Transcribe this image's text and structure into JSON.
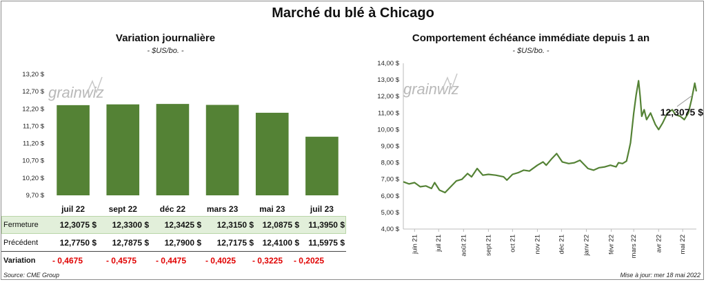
{
  "title": "Marché du blé à Chicago",
  "left_chart": {
    "title": "Variation journalière",
    "unit": "- $US/bo. -"
  },
  "right_chart": {
    "title": "Comportement échéance immédiate depuis 1 an",
    "unit": "- $US/bo. -",
    "last_label": "12,3075 $"
  },
  "watermark": "grainwiz",
  "table": {
    "rows": [
      {
        "label": "Fermeture",
        "values": [
          "12,3075  $",
          "12,3300  $",
          "12,3425  $",
          "12,3150  $",
          "12,0875  $",
          "11,3950  $"
        ]
      },
      {
        "label": "Précédent",
        "values": [
          "12,7750  $",
          "12,7875  $",
          "12,7900  $",
          "12,7175  $",
          "12,4100  $",
          "11,5975  $"
        ]
      },
      {
        "label": "Variation",
        "values": [
          "- 0,4675",
          "- 0,4575",
          "- 0,4475",
          "- 0,4025",
          "- 0,3225",
          "- 0,2025"
        ]
      }
    ]
  },
  "colors": {
    "bar": "#548235",
    "line": "#548235",
    "fermeture_bg": "#e2efda",
    "negative": "#e00000"
  },
  "footer": {
    "source": "Source: CME Group",
    "updated": "Mise à jour: mer 18 mai 2022"
  },
  "chart_data": [
    {
      "type": "bar",
      "title": "Variation journalière",
      "categories": [
        "juil 22",
        "sept 22",
        "déc 22",
        "mars 23",
        "mai 23",
        "juil 23"
      ],
      "values": [
        12.3075,
        12.33,
        12.3425,
        12.315,
        12.0875,
        11.395
      ],
      "ylim": [
        9.7,
        13.2
      ],
      "yticks": [
        9.7,
        10.2,
        10.7,
        11.2,
        11.7,
        12.2,
        12.7,
        13.2
      ],
      "ytick_labels": [
        "9,70 $",
        "10,20 $",
        "10,70 $",
        "11,20 $",
        "11,70 $",
        "12,20 $",
        "12,70 $",
        "13,20 $"
      ],
      "grid": false
    },
    {
      "type": "line",
      "title": "Comportement échéance immédiate depuis 1 an",
      "ylim": [
        4.0,
        14.0
      ],
      "yticks": [
        4,
        5,
        6,
        7,
        8,
        9,
        10,
        11,
        12,
        13,
        14
      ],
      "ytick_labels": [
        "4,00 $",
        "5,00 $",
        "6,00 $",
        "7,00 $",
        "8,00 $",
        "9,00 $",
        "10,00 $",
        "11,00 $",
        "12,00 $",
        "13,00 $",
        "14,00 $"
      ],
      "xlabels": [
        "juin 21",
        "juil 21",
        "août 21",
        "sept 21",
        "oct 21",
        "nov 21",
        "déc 21",
        "janv 22",
        "févr 22",
        "mars 22",
        "avr 22",
        "mai 22"
      ],
      "x_range": [
        "2021-05-18",
        "2022-05-18"
      ],
      "grid": false,
      "series": [
        {
          "points": [
            [
              "2021-05-18",
              6.85
            ],
            [
              "2021-05-25",
              6.72
            ],
            [
              "2021-06-01",
              6.8
            ],
            [
              "2021-06-08",
              6.55
            ],
            [
              "2021-06-15",
              6.6
            ],
            [
              "2021-06-22",
              6.45
            ],
            [
              "2021-06-26",
              6.8
            ],
            [
              "2021-07-02",
              6.35
            ],
            [
              "2021-07-09",
              6.2
            ],
            [
              "2021-07-16",
              6.55
            ],
            [
              "2021-07-23",
              6.9
            ],
            [
              "2021-07-30",
              7.0
            ],
            [
              "2021-08-06",
              7.35
            ],
            [
              "2021-08-11",
              7.15
            ],
            [
              "2021-08-18",
              7.65
            ],
            [
              "2021-08-25",
              7.25
            ],
            [
              "2021-09-01",
              7.3
            ],
            [
              "2021-09-10",
              7.25
            ],
            [
              "2021-09-20",
              7.15
            ],
            [
              "2021-09-24",
              6.95
            ],
            [
              "2021-10-01",
              7.3
            ],
            [
              "2021-10-08",
              7.4
            ],
            [
              "2021-10-15",
              7.55
            ],
            [
              "2021-10-22",
              7.5
            ],
            [
              "2021-11-01",
              7.85
            ],
            [
              "2021-11-08",
              8.05
            ],
            [
              "2021-11-12",
              7.85
            ],
            [
              "2021-11-19",
              8.25
            ],
            [
              "2021-11-25",
              8.55
            ],
            [
              "2021-12-02",
              8.05
            ],
            [
              "2021-12-10",
              7.95
            ],
            [
              "2021-12-17",
              8.0
            ],
            [
              "2021-12-24",
              8.15
            ],
            [
              "2022-01-03",
              7.65
            ],
            [
              "2022-01-10",
              7.55
            ],
            [
              "2022-01-17",
              7.7
            ],
            [
              "2022-01-24",
              7.75
            ],
            [
              "2022-01-31",
              7.85
            ],
            [
              "2022-02-07",
              7.75
            ],
            [
              "2022-02-10",
              8.0
            ],
            [
              "2022-02-15",
              7.95
            ],
            [
              "2022-02-20",
              8.1
            ],
            [
              "2022-02-23",
              8.75
            ],
            [
              "2022-02-25",
              9.2
            ],
            [
              "2022-03-01",
              11.0
            ],
            [
              "2022-03-04",
              12.1
            ],
            [
              "2022-03-07",
              12.95
            ],
            [
              "2022-03-09",
              12.0
            ],
            [
              "2022-03-11",
              10.8
            ],
            [
              "2022-03-14",
              11.2
            ],
            [
              "2022-03-17",
              10.6
            ],
            [
              "2022-03-22",
              11.0
            ],
            [
              "2022-03-28",
              10.3
            ],
            [
              "2022-04-01",
              10.0
            ],
            [
              "2022-04-06",
              10.4
            ],
            [
              "2022-04-12",
              11.0
            ],
            [
              "2022-04-18",
              11.2
            ],
            [
              "2022-04-22",
              10.9
            ],
            [
              "2022-04-28",
              10.8
            ],
            [
              "2022-05-03",
              10.6
            ],
            [
              "2022-05-08",
              11.0
            ],
            [
              "2022-05-12",
              11.8
            ],
            [
              "2022-05-16",
              12.8
            ],
            [
              "2022-05-18",
              12.3075
            ]
          ]
        }
      ]
    }
  ]
}
